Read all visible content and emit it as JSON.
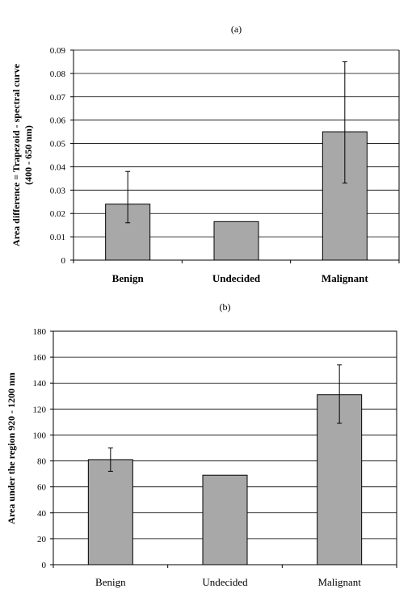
{
  "chart_data": [
    {
      "type": "bar",
      "title": "(a)",
      "ylabel_lines": [
        "Area difference = Trapezoid - spectral curve",
        "(400 - 650 nm)"
      ],
      "categories": [
        "Benign",
        "Undecided",
        "Malignant"
      ],
      "values": [
        0.024,
        0.0165,
        0.055
      ],
      "error_low": [
        0.016,
        null,
        0.033
      ],
      "error_high": [
        0.038,
        null,
        0.085
      ],
      "ylim": [
        0,
        0.09
      ],
      "yticks": [
        0,
        0.01,
        0.02,
        0.03,
        0.04,
        0.05,
        0.06,
        0.07,
        0.08,
        0.09
      ],
      "ytick_labels": [
        "0",
        "0.01",
        "0.02",
        "0.03",
        "0.04",
        "0.05",
        "0.06",
        "0.07",
        "0.08",
        "0.09"
      ],
      "grid": true,
      "bar_color": "#a8a8a8"
    },
    {
      "type": "bar",
      "title": "(b)",
      "ylabel_lines": [
        "Area under the region 920 - 1200 nm"
      ],
      "categories": [
        "Benign",
        "Undecided",
        "Malignant"
      ],
      "values": [
        81,
        69,
        131
      ],
      "error_low": [
        72,
        null,
        109
      ],
      "error_high": [
        90,
        null,
        154
      ],
      "ylim": [
        0,
        180
      ],
      "yticks": [
        0,
        20,
        40,
        60,
        80,
        100,
        120,
        140,
        160,
        180
      ],
      "ytick_labels": [
        "0",
        "20",
        "40",
        "60",
        "80",
        "100",
        "120",
        "140",
        "160",
        "180"
      ],
      "grid": true,
      "bar_color": "#a8a8a8"
    }
  ]
}
